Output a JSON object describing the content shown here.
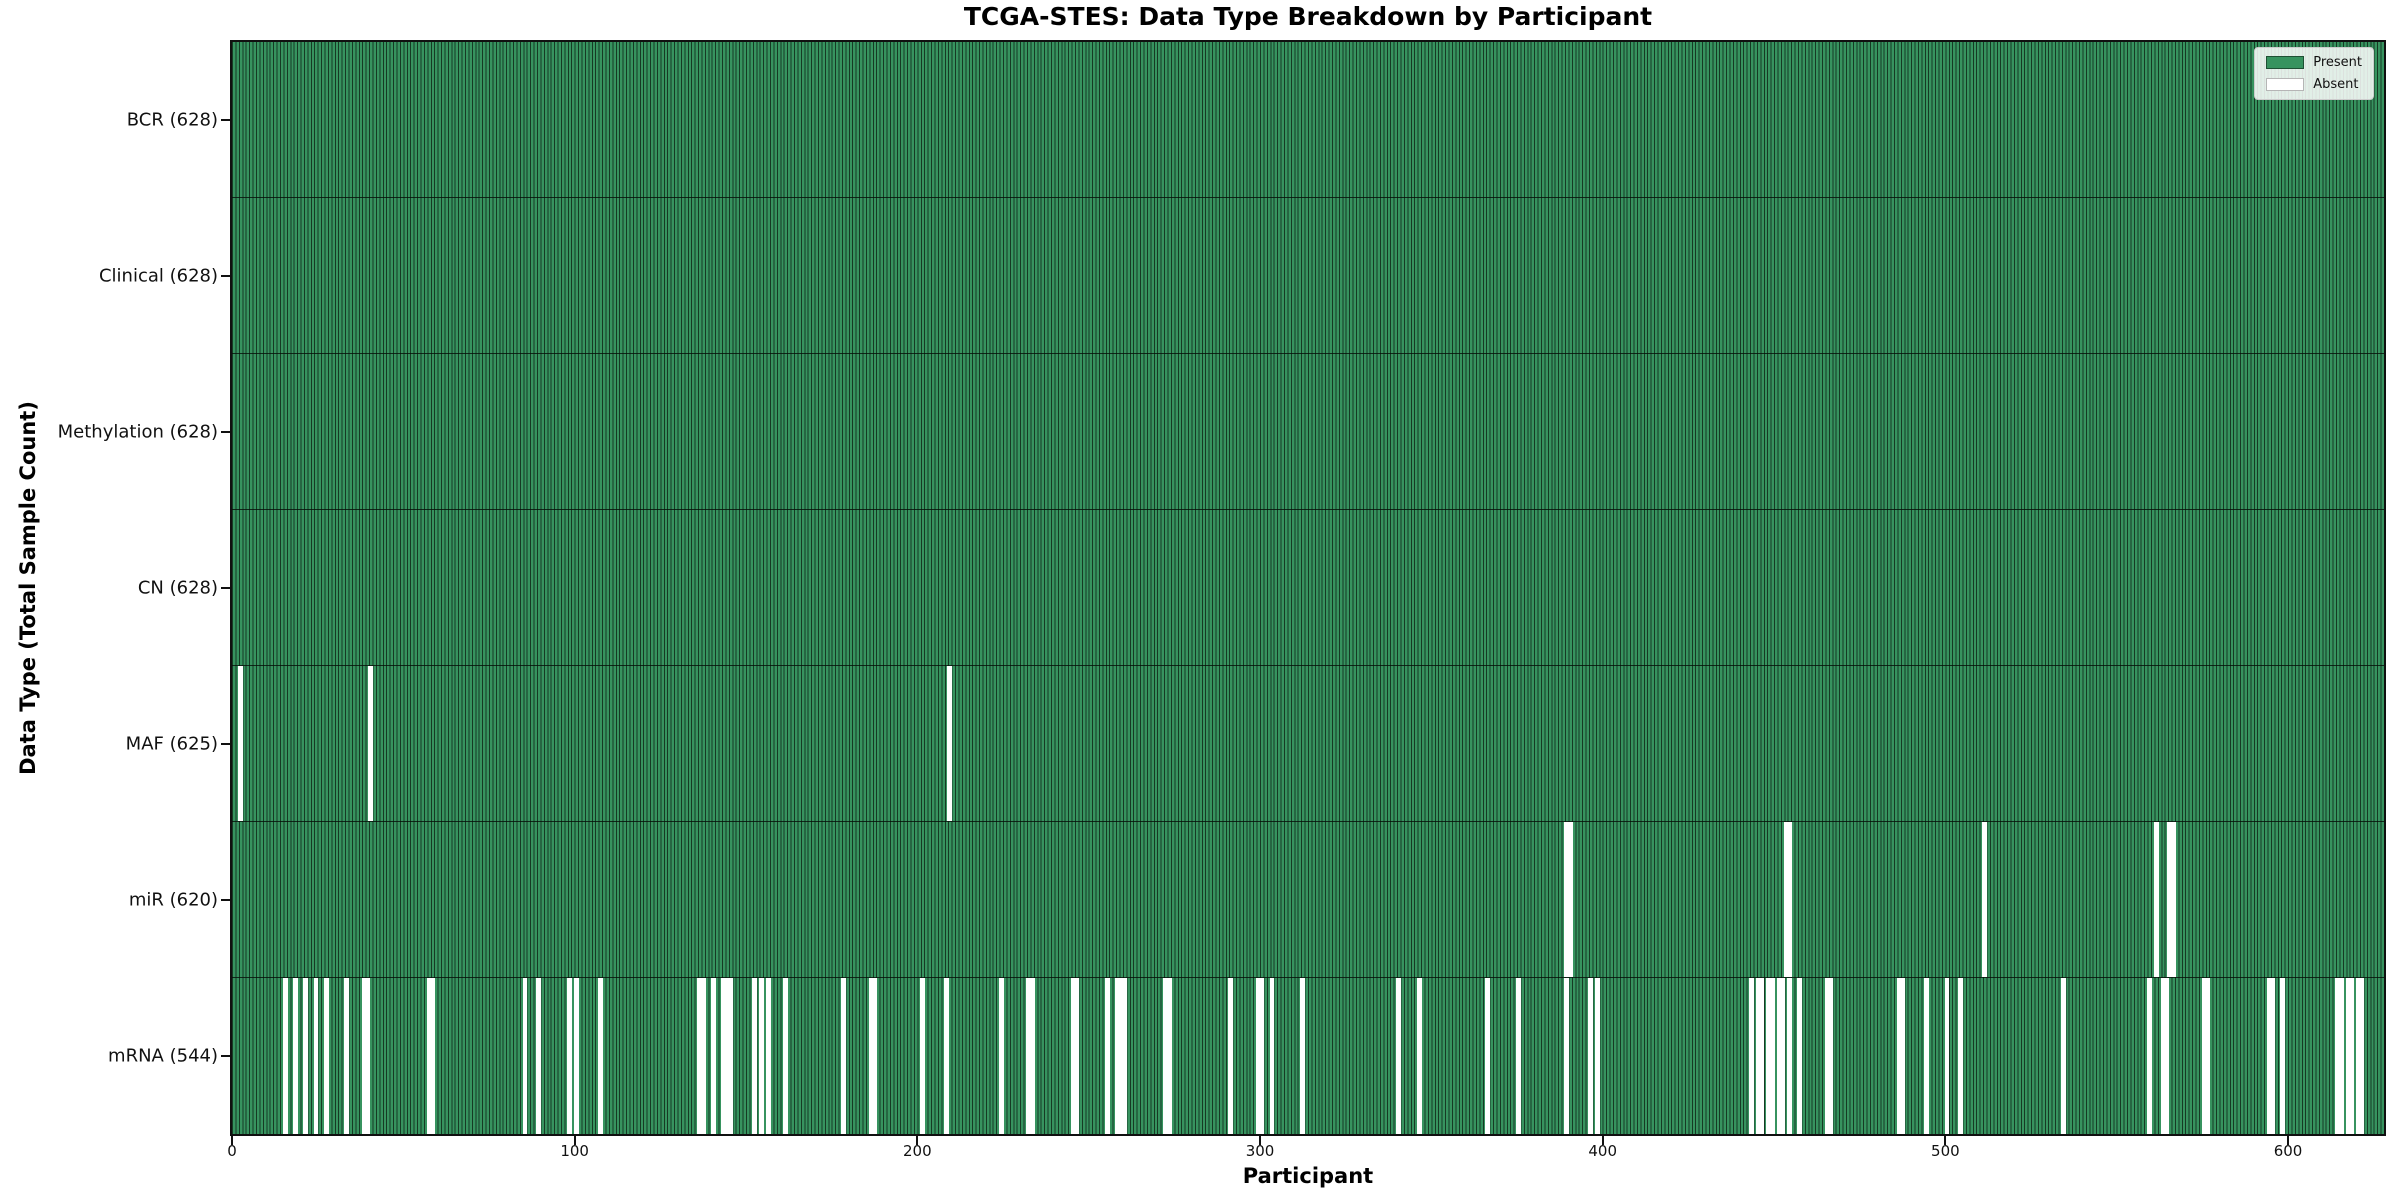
{
  "chart_data": {
    "type": "heatmap",
    "title": "TCGA-STES: Data Type Breakdown by Participant",
    "xlabel": "Participant",
    "ylabel": "Data Type (Total Sample Count)",
    "x_ticks": [
      0,
      100,
      200,
      300,
      400,
      500,
      600
    ],
    "n_participants": 628,
    "xlim": [
      0,
      628
    ],
    "grid": false,
    "legend": {
      "position": "upper right",
      "entries": [
        {
          "label": "Present",
          "swatch": "present"
        },
        {
          "label": "Absent",
          "swatch": "absent"
        }
      ]
    },
    "colors": {
      "present": "#37935F",
      "bar_edge": "#163A24",
      "absent": "#FFFFFF"
    },
    "rows": [
      {
        "label": "BCR (628)",
        "data_type": "BCR",
        "present_count": 628,
        "absent_participants": []
      },
      {
        "label": "Clinical (628)",
        "data_type": "Clinical",
        "present_count": 628,
        "absent_participants": []
      },
      {
        "label": "Methylation (628)",
        "data_type": "Methylation",
        "present_count": 628,
        "absent_participants": []
      },
      {
        "label": "CN (628)",
        "data_type": "CN",
        "present_count": 628,
        "absent_participants": []
      },
      {
        "label": "MAF (625)",
        "data_type": "MAF",
        "present_count": 625,
        "absent_participants": [
          2,
          40,
          209
        ]
      },
      {
        "label": "miR (620)",
        "data_type": "miR",
        "present_count": 620,
        "absent_participants": [
          389,
          390,
          453,
          454,
          511,
          561,
          565,
          566
        ]
      },
      {
        "label": "mRNA (544)",
        "data_type": "mRNA",
        "present_count": 544,
        "absent_participants": [
          15,
          18,
          21,
          24,
          27,
          33,
          38,
          39,
          57,
          58,
          85,
          89,
          98,
          100,
          107,
          136,
          137,
          140,
          143,
          144,
          145,
          152,
          154,
          156,
          161,
          178,
          186,
          187,
          201,
          208,
          224,
          232,
          233,
          245,
          246,
          255,
          258,
          259,
          260,
          272,
          273,
          291,
          299,
          300,
          303,
          312,
          340,
          346,
          366,
          375,
          389,
          396,
          398,
          443,
          445,
          446,
          448,
          449,
          451,
          452,
          454,
          457,
          465,
          466,
          486,
          487,
          494,
          500,
          504,
          534,
          559,
          563,
          564,
          575,
          576,
          594,
          595,
          598,
          614,
          615,
          617,
          618,
          620,
          621
        ]
      }
    ]
  }
}
